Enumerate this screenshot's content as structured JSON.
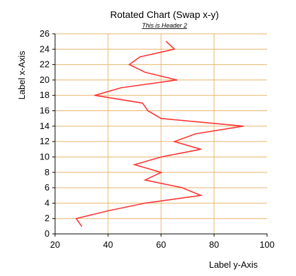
{
  "chart_data": {
    "type": "line",
    "orientation": "swapped-xy",
    "title": "Rotated Chart (Swap x-y)",
    "subtitle": "This is Header 2",
    "xlabel": "Label x-Axis",
    "ylabel": "Label y-Axis",
    "x_range": [
      0,
      26
    ],
    "x_ticks": [
      "0",
      "2",
      "4",
      "6",
      "8",
      "10",
      "12",
      "14",
      "16",
      "18",
      "20",
      "22",
      "24",
      "26"
    ],
    "y_range": [
      20,
      100
    ],
    "y_ticks": [
      "20",
      "40",
      "60",
      "80",
      "100"
    ],
    "grid": true,
    "legend": "none",
    "series": [
      {
        "x": [
          1,
          2,
          3,
          4,
          5,
          6,
          7,
          8,
          9,
          10,
          11,
          12,
          13,
          14,
          15,
          16,
          17,
          18,
          19,
          20,
          21,
          22,
          23,
          24,
          25
        ],
        "values": [
          30,
          28,
          40,
          54,
          75,
          68,
          54,
          60,
          50,
          60,
          75,
          65,
          73,
          91,
          60,
          55,
          53,
          35,
          45,
          66,
          54,
          48,
          52,
          65,
          62
        ],
        "color": "#ff3333"
      }
    ],
    "colors": {
      "grid": "#e8b46c",
      "axis": "#000000",
      "line": "#ff3333"
    }
  }
}
